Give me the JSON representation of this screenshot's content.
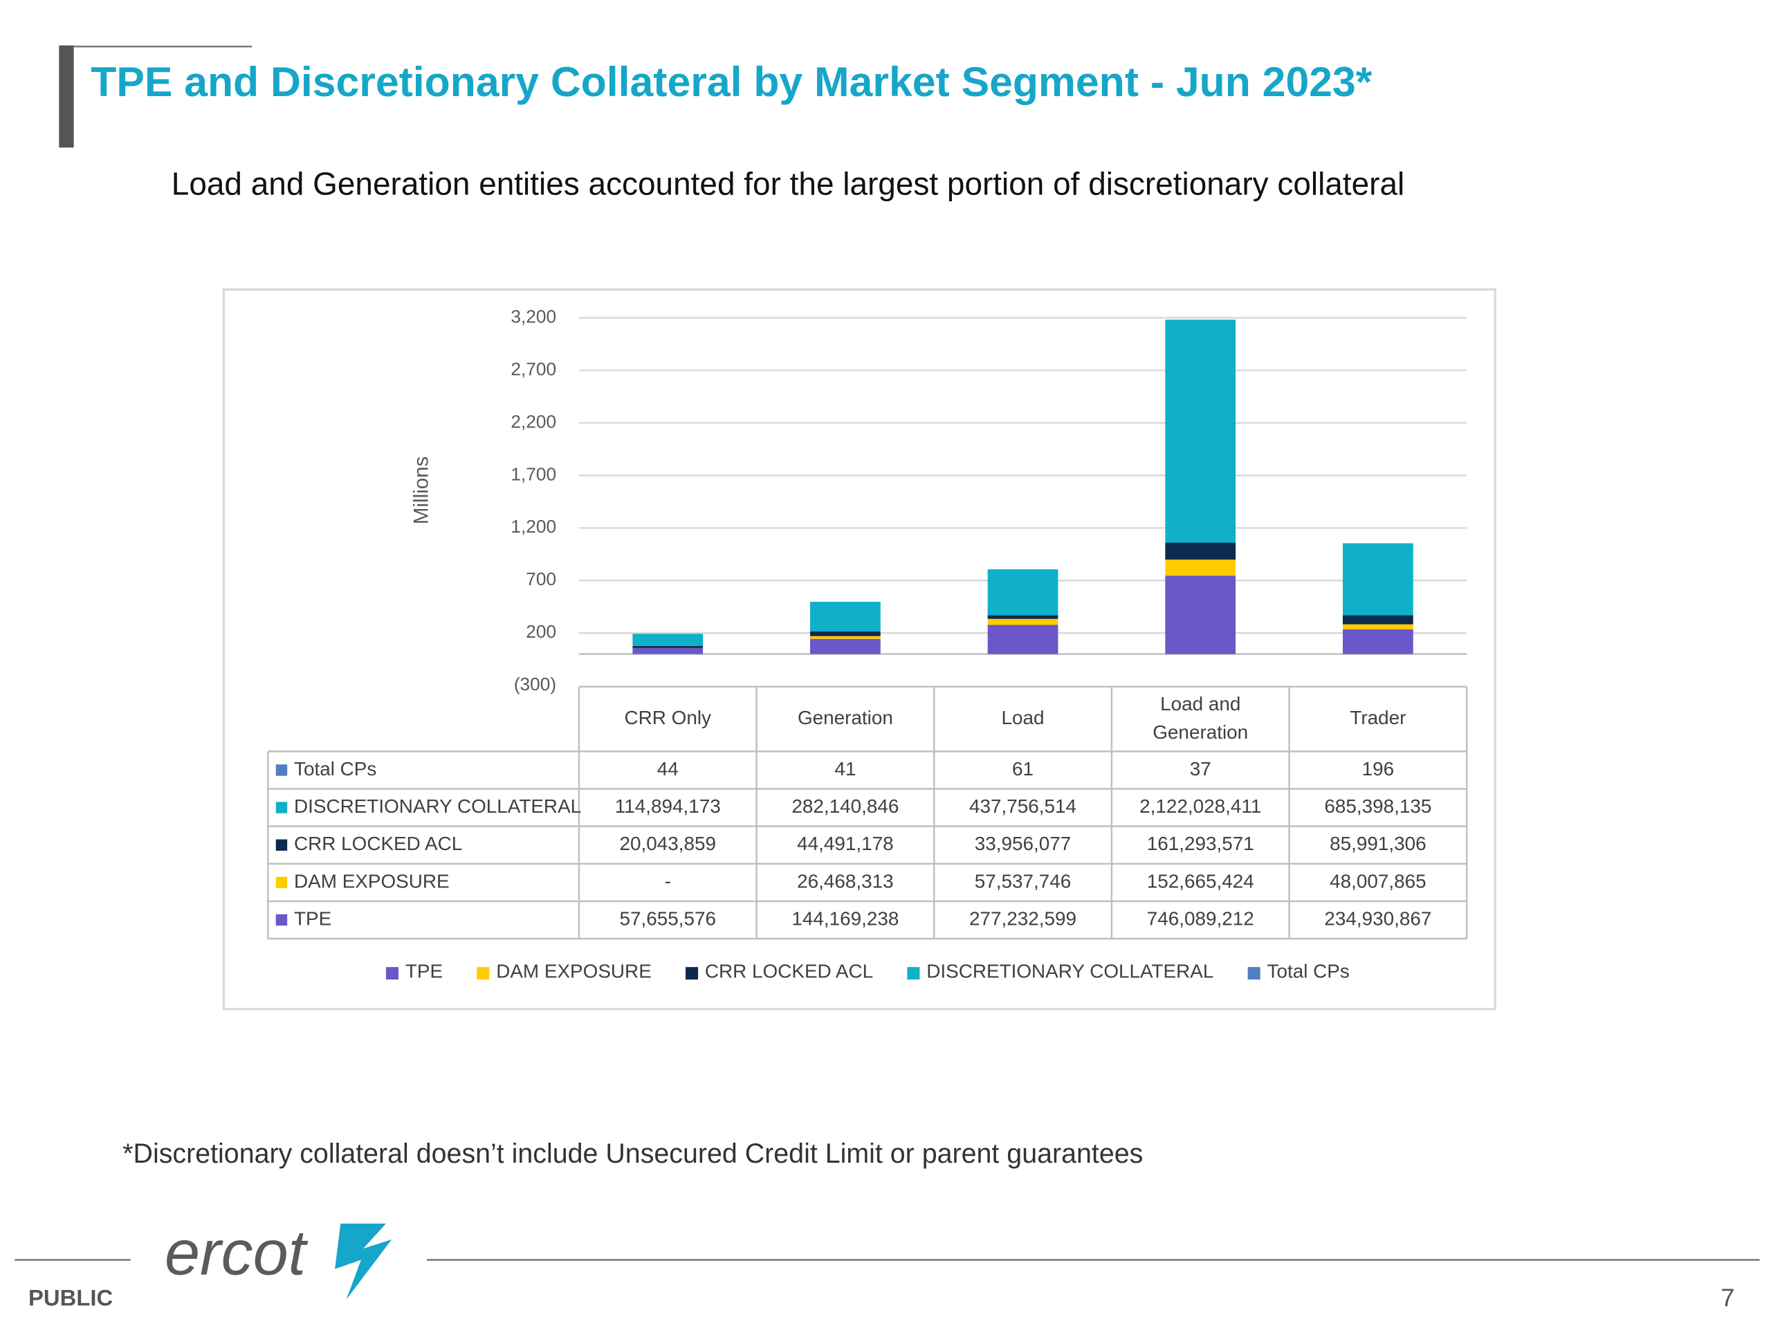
{
  "header": {
    "title": "TPE and Discretionary Collateral by Market Segment  -  Jun 2023*",
    "subtitle": "Load and Generation entities accounted for the largest portion of discretionary collateral"
  },
  "chart_data": {
    "type": "bar",
    "stacked": true,
    "y_label": "Millions",
    "categories": [
      "CRR Only",
      "Generation",
      "Load",
      "Load and Generation",
      "Trader"
    ],
    "ylim": [
      -300,
      3200
    ],
    "yticks": [
      {
        "value": -300,
        "label": "(300)"
      },
      200,
      700,
      {
        "value": 1200,
        "label": "1,200"
      },
      {
        "value": 1700,
        "label": "1,700"
      },
      {
        "value": 2200,
        "label": "2,200"
      },
      {
        "value": 2700,
        "label": "2,700"
      },
      {
        "value": 3200,
        "label": "3,200"
      }
    ],
    "grid": true,
    "series": [
      {
        "name": "TPE",
        "color": "#6a57c8",
        "values": [
          57.655576,
          144.169238,
          277.232599,
          746.089212,
          234.930867
        ],
        "value_labels": [
          "57,655,576",
          "144,169,238",
          "277,232,599",
          "746,089,212",
          "234,930,867"
        ]
      },
      {
        "name": "DAM  EXPOSURE",
        "color": "#ffcc00",
        "values": [
          0,
          26.468313,
          57.537746,
          152.665424,
          48.007865
        ],
        "value_labels": [
          "-",
          "26,468,313",
          "57,537,746",
          "152,665,424",
          "48,007,865"
        ]
      },
      {
        "name": "CRR LOCKED ACL",
        "color": "#0c2a4c",
        "values": [
          20.043859,
          44.491178,
          33.956077,
          161.293571,
          85.991306
        ],
        "value_labels": [
          "20,043,859",
          "44,491,178",
          "33,956,077",
          "161,293,571",
          "85,991,306"
        ]
      },
      {
        "name": "DISCRETIONARY COLLATERAL",
        "color": "#0fb0c8",
        "values": [
          114.894173,
          282.140846,
          437.756514,
          2122.028411,
          685.398135
        ],
        "value_labels": [
          "114,894,173",
          "282,140,846",
          "437,756,514",
          "2,122,028,411",
          "685,398,135"
        ]
      },
      {
        "name": "Total CPs",
        "color": "#4f7fc1",
        "table_only": true,
        "values": [
          44,
          41,
          61,
          37,
          196
        ]
      }
    ]
  },
  "footnote": "*Discretionary collateral doesn’t include Unsecured Credit Limit or parent guarantees",
  "footer": {
    "classification": "PUBLIC",
    "logo": "ercot",
    "page": "7"
  }
}
